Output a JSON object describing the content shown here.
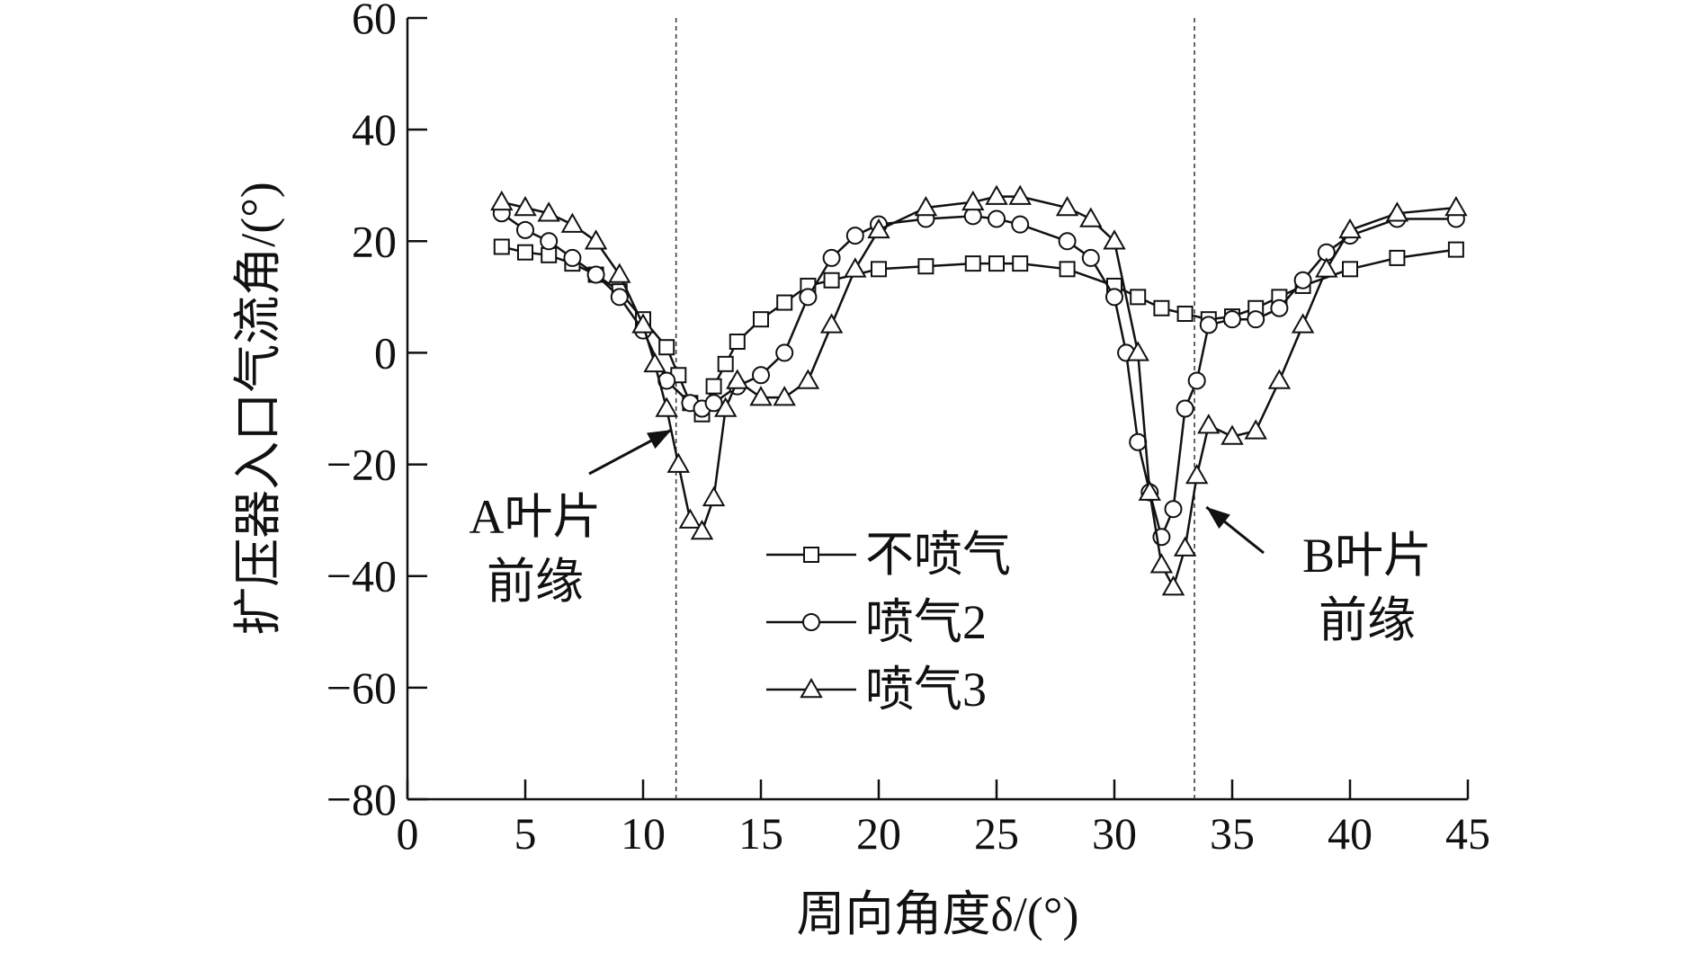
{
  "chart_data": {
    "type": "line",
    "title": "",
    "xlabel": "周向角度δ/(°)",
    "ylabel": "扩压器入口气流角/(°)",
    "xlim": [
      0,
      45
    ],
    "ylim": [
      -80,
      60
    ],
    "xticks": [
      0,
      5,
      10,
      15,
      20,
      25,
      30,
      35,
      40,
      45
    ],
    "yticks": [
      60,
      40,
      20,
      0,
      -20,
      -40,
      -60,
      -80
    ],
    "xtick_labels": [
      "0",
      "5",
      "10",
      "15",
      "20",
      "25",
      "30",
      "35",
      "40",
      "45"
    ],
    "ytick_labels": [
      "60",
      "40",
      "20",
      "0",
      "−20",
      "−40",
      "−60",
      "−80"
    ],
    "grid": false,
    "legend_position": "center",
    "reference_lines": [
      {
        "name": "A blade leading edge",
        "x": 11.4
      },
      {
        "name": "B blade leading edge",
        "x": 33.4
      }
    ],
    "annotations": [
      {
        "lines": [
          "A叶片",
          "前缘"
        ],
        "points_to": [
          11.4,
          -13
        ]
      },
      {
        "lines": [
          "B叶片",
          "前缘"
        ],
        "points_to": [
          33.6,
          -27
        ]
      }
    ],
    "series": [
      {
        "name": "不喷气",
        "marker": "square",
        "x": [
          4,
          5,
          6,
          7,
          8,
          9,
          10,
          11,
          11.5,
          12,
          12.5,
          13,
          13.5,
          14,
          15,
          16,
          17,
          18,
          20,
          22,
          24,
          25,
          26,
          28,
          30,
          31,
          32,
          33,
          34,
          35,
          36,
          37,
          38,
          40,
          42,
          44.5
        ],
        "y": [
          19,
          18,
          17.5,
          16,
          14,
          11,
          6,
          1,
          -4,
          -9,
          -11,
          -6,
          -2,
          2,
          6,
          9,
          12,
          13,
          15,
          15.5,
          16,
          16,
          16,
          15,
          12,
          10,
          8,
          7,
          6,
          6.5,
          8,
          10,
          12,
          15,
          17,
          18.5
        ]
      },
      {
        "name": "喷气2",
        "marker": "circle",
        "x": [
          4,
          5,
          6,
          7,
          8,
          9,
          10,
          11,
          12,
          12.5,
          13,
          14,
          15,
          16,
          17,
          18,
          19,
          20,
          22,
          24,
          25,
          26,
          28,
          29,
          30,
          30.5,
          31,
          31.5,
          32,
          32.5,
          33,
          33.5,
          34,
          35,
          36,
          37,
          38,
          39,
          40,
          42,
          44.5
        ],
        "y": [
          25,
          22,
          20,
          17,
          14,
          10,
          4,
          -5,
          -9,
          -10,
          -9,
          -6,
          -4,
          0,
          10,
          17,
          21,
          23,
          24,
          24.5,
          24,
          23,
          20,
          17,
          10,
          0,
          -16,
          -25,
          -33,
          -28,
          -10,
          -5,
          5,
          6,
          6,
          8,
          13,
          18,
          21,
          24,
          24
        ]
      },
      {
        "name": "喷气3",
        "marker": "triangle",
        "x": [
          4,
          5,
          6,
          7,
          8,
          9,
          10,
          10.5,
          11,
          11.5,
          12,
          12.5,
          13,
          13.5,
          14,
          15,
          16,
          17,
          18,
          19,
          20,
          22,
          24,
          25,
          26,
          28,
          29,
          30,
          31,
          31.5,
          32,
          32.5,
          33,
          33.5,
          34,
          35,
          36,
          37,
          38,
          39,
          40,
          42,
          44.5
        ],
        "y": [
          27,
          26,
          25,
          23,
          20,
          14,
          5,
          -2,
          -10,
          -20,
          -30,
          -32,
          -26,
          -10,
          -5,
          -8,
          -8,
          -5,
          5,
          15,
          22,
          26,
          27,
          28,
          28,
          26,
          24,
          20,
          0,
          -25,
          -38,
          -42,
          -35,
          -22,
          -13,
          -15,
          -14,
          -5,
          5,
          15,
          22,
          25,
          26
        ]
      }
    ]
  }
}
